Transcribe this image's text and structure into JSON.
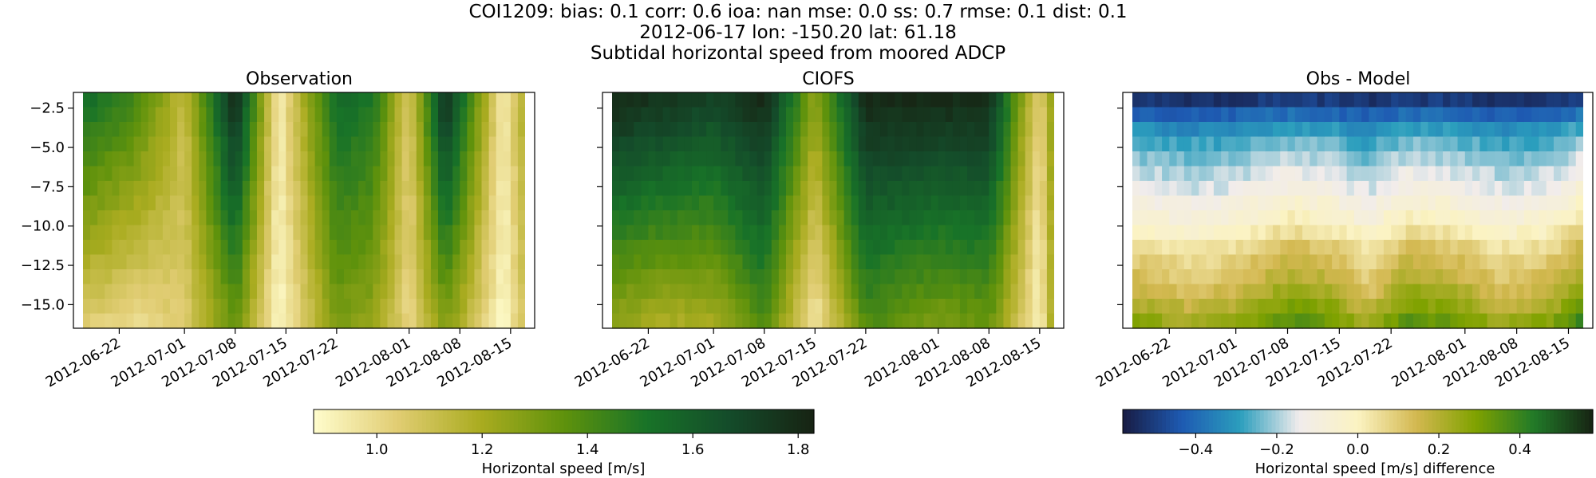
{
  "figure": {
    "title_lines": [
      "COI1209: bias: 0.1  corr: 0.6  ioa: nan  mse: 0.0  ss: 0.7  rmse: 0.1  dist: 0.1",
      "2012-06-17 lon: -150.20 lat: 61.18",
      "Subtidal horizontal speed from moored ADCP"
    ]
  },
  "chart_data": [
    {
      "type": "heatmap",
      "title": "Observation",
      "x_range": [
        "2012-06-17",
        "2012-08-17"
      ],
      "xticks": [
        "2012-06-22",
        "2012-07-01",
        "2012-07-08",
        "2012-07-15",
        "2012-07-22",
        "2012-08-01",
        "2012-08-08",
        "2012-08-15"
      ],
      "ylim": [
        -16.5,
        -1.5
      ],
      "yticks": [
        -2.5,
        -5.0,
        -7.5,
        -10.0,
        -12.5,
        -15.0
      ],
      "ytick_labels": [
        "−2.5",
        "−5.0",
        "−7.5",
        "−10.0",
        "−12.5",
        "−15.0"
      ],
      "ylabel": "",
      "colormap": "speed",
      "vmin": 0.88,
      "vmax": 1.83,
      "depth_bins": 16,
      "surface_value_profile": [
        [
          "2012-06-17",
          1.55
        ],
        [
          "2012-06-24",
          1.42
        ],
        [
          "2012-07-01",
          1.12
        ],
        [
          "2012-07-08",
          1.8
        ],
        [
          "2012-07-14",
          0.93
        ],
        [
          "2012-07-22",
          1.55
        ],
        [
          "2012-07-27",
          1.5
        ],
        [
          "2012-08-01",
          1.05
        ],
        [
          "2012-08-06",
          1.78
        ],
        [
          "2012-08-14",
          0.93
        ],
        [
          "2012-08-17",
          1.2
        ]
      ],
      "bottom_value_profile": [
        [
          "2012-06-17",
          1.05
        ],
        [
          "2012-06-24",
          1.0
        ],
        [
          "2012-07-01",
          1.05
        ],
        [
          "2012-07-08",
          1.35
        ],
        [
          "2012-07-14",
          0.89
        ],
        [
          "2012-07-22",
          1.3
        ],
        [
          "2012-07-27",
          1.25
        ],
        [
          "2012-08-01",
          1.0
        ],
        [
          "2012-08-06",
          1.3
        ],
        [
          "2012-08-14",
          0.89
        ],
        [
          "2012-08-17",
          1.1
        ]
      ]
    },
    {
      "type": "heatmap",
      "title": "CIOFS",
      "x_range": [
        "2012-06-17",
        "2012-08-17"
      ],
      "xticks": [
        "2012-06-22",
        "2012-07-01",
        "2012-07-08",
        "2012-07-15",
        "2012-07-22",
        "2012-08-01",
        "2012-08-08",
        "2012-08-15"
      ],
      "ylim": [
        -16.5,
        -1.5
      ],
      "yticks": [
        -2.5,
        -5.0,
        -7.5,
        -10.0,
        -12.5,
        -15.0
      ],
      "colormap": "speed",
      "vmin": 0.88,
      "vmax": 1.83,
      "depth_bins": 16,
      "surface_value_profile": [
        [
          "2012-06-17",
          1.8
        ],
        [
          "2012-06-24",
          1.75
        ],
        [
          "2012-07-01",
          1.7
        ],
        [
          "2012-07-08",
          1.8
        ],
        [
          "2012-07-15",
          1.25
        ],
        [
          "2012-07-22",
          1.8
        ],
        [
          "2012-08-01",
          1.8
        ],
        [
          "2012-08-08",
          1.78
        ],
        [
          "2012-08-15",
          1.0
        ],
        [
          "2012-08-17",
          1.3
        ]
      ],
      "bottom_value_profile": [
        [
          "2012-06-17",
          1.25
        ],
        [
          "2012-06-24",
          1.2
        ],
        [
          "2012-07-01",
          1.2
        ],
        [
          "2012-07-08",
          1.4
        ],
        [
          "2012-07-15",
          0.95
        ],
        [
          "2012-07-22",
          1.4
        ],
        [
          "2012-08-01",
          1.3
        ],
        [
          "2012-08-08",
          1.35
        ],
        [
          "2012-08-15",
          0.9
        ],
        [
          "2012-08-17",
          1.25
        ]
      ]
    },
    {
      "type": "heatmap",
      "title": "Obs - Model",
      "x_range": [
        "2012-06-17",
        "2012-08-17"
      ],
      "xticks": [
        "2012-06-22",
        "2012-07-01",
        "2012-07-08",
        "2012-07-15",
        "2012-07-22",
        "2012-08-01",
        "2012-08-08",
        "2012-08-15"
      ],
      "ylim": [
        -16.5,
        -1.5
      ],
      "yticks": [
        -2.5,
        -5.0,
        -7.5,
        -10.0,
        -12.5,
        -15.0
      ],
      "colormap": "balance",
      "vmin": -0.58,
      "vmax": 0.58,
      "depth_bins": 16,
      "column_profile": [
        [
          -2.0,
          -0.52
        ],
        [
          -3.0,
          -0.4
        ],
        [
          -4.0,
          -0.3
        ],
        [
          -5.0,
          -0.25
        ],
        [
          -6.0,
          -0.2
        ],
        [
          -7.0,
          -0.16
        ],
        [
          -8.0,
          -0.12
        ],
        [
          -9.0,
          -0.07
        ],
        [
          -10.0,
          -0.02
        ],
        [
          -11.0,
          0.05
        ],
        [
          -12.0,
          0.1
        ],
        [
          -13.0,
          0.13
        ],
        [
          -14.0,
          0.17
        ],
        [
          -15.0,
          0.22
        ],
        [
          -16.0,
          0.28
        ]
      ],
      "time_anomaly": [
        [
          "2012-06-17",
          0.0
        ],
        [
          "2012-06-25",
          -0.05
        ],
        [
          "2012-07-01",
          -0.02
        ],
        [
          "2012-07-08",
          0.06
        ],
        [
          "2012-07-14",
          0.03
        ],
        [
          "2012-07-19",
          -0.05
        ],
        [
          "2012-07-24",
          0.06
        ],
        [
          "2012-08-01",
          0.02
        ],
        [
          "2012-08-06",
          -0.04
        ],
        [
          "2012-08-13",
          0.0
        ],
        [
          "2012-08-17",
          0.1
        ]
      ]
    }
  ],
  "colorbars": [
    {
      "label": "Horizontal speed [m/s]",
      "colormap": "speed",
      "vmin": 0.88,
      "vmax": 1.83,
      "ticks": [
        1.0,
        1.2,
        1.4,
        1.6,
        1.8
      ],
      "tick_labels": [
        "1.0",
        "1.2",
        "1.4",
        "1.6",
        "1.8"
      ]
    },
    {
      "label": "Horizontal speed [m/s] difference",
      "colormap": "balance",
      "vmin": -0.58,
      "vmax": 0.58,
      "ticks": [
        -0.4,
        -0.2,
        0.0,
        0.2,
        0.4
      ],
      "tick_labels": [
        "−0.4",
        "−0.2",
        "0.0",
        "0.2",
        "0.4"
      ]
    }
  ],
  "colormaps": {
    "speed": [
      "#fffdcd",
      "#e1cd73",
      "#aaac20",
      "#5f920c",
      "#187328",
      "#144b2a",
      "#172313"
    ],
    "balance": [
      "#181c43",
      "#1e5ab2",
      "#2b9ebd",
      "#f1ecec",
      "#fbf3c2",
      "#d3b850",
      "#80a200",
      "#217a28",
      "#172313"
    ]
  }
}
